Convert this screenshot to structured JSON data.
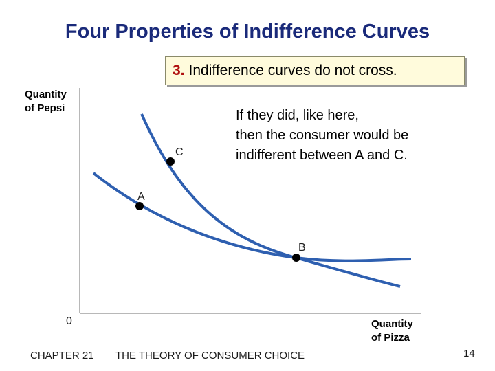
{
  "slide": {
    "title": "Four Properties of Indifference Curves",
    "callout_number": "3.",
    "callout_text": "Indifference curves do not cross.",
    "explanation_lines": [
      "If they did, like here,",
      "then the consumer would be",
      "indifferent between A and C."
    ]
  },
  "axes": {
    "y_label_lines": [
      "Quantity",
      "of Pepsi"
    ],
    "x_label_lines": [
      "Quantity",
      "of Pizza"
    ],
    "origin": "0"
  },
  "points": {
    "a": "A",
    "b": "B",
    "c": "C"
  },
  "colors": {
    "curve": "#2e5fb0",
    "title": "#1a2a7a",
    "callout_number": "#b01010",
    "callout_bg": "#fffbdc"
  },
  "footer": {
    "chapter": "CHAPTER 21",
    "title": "THE THEORY OF CONSUMER CHOICE",
    "page": "14"
  }
}
